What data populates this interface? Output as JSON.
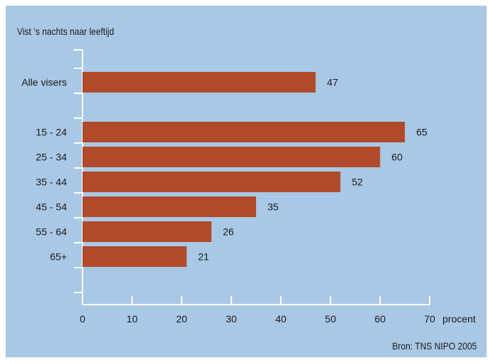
{
  "chart_data": {
    "type": "bar",
    "orientation": "horizontal",
    "title": "Vist ‘s nachts naar leeftijd",
    "categories": [
      "Alle visers",
      "",
      "15 - 24",
      "25 - 34",
      "35 - 44",
      "45 - 54",
      "55 - 64",
      "65+"
    ],
    "values": [
      47,
      null,
      65,
      60,
      52,
      35,
      26,
      21
    ],
    "xlabel": "procent",
    "xlim": [
      0,
      70
    ],
    "xticks": [
      0,
      10,
      20,
      30,
      40,
      50,
      60,
      70
    ],
    "grid": false,
    "bar_color": "#b14a2b",
    "background_color": "#a9c8e6",
    "source": "Bron: TNS NIPO 2005"
  }
}
